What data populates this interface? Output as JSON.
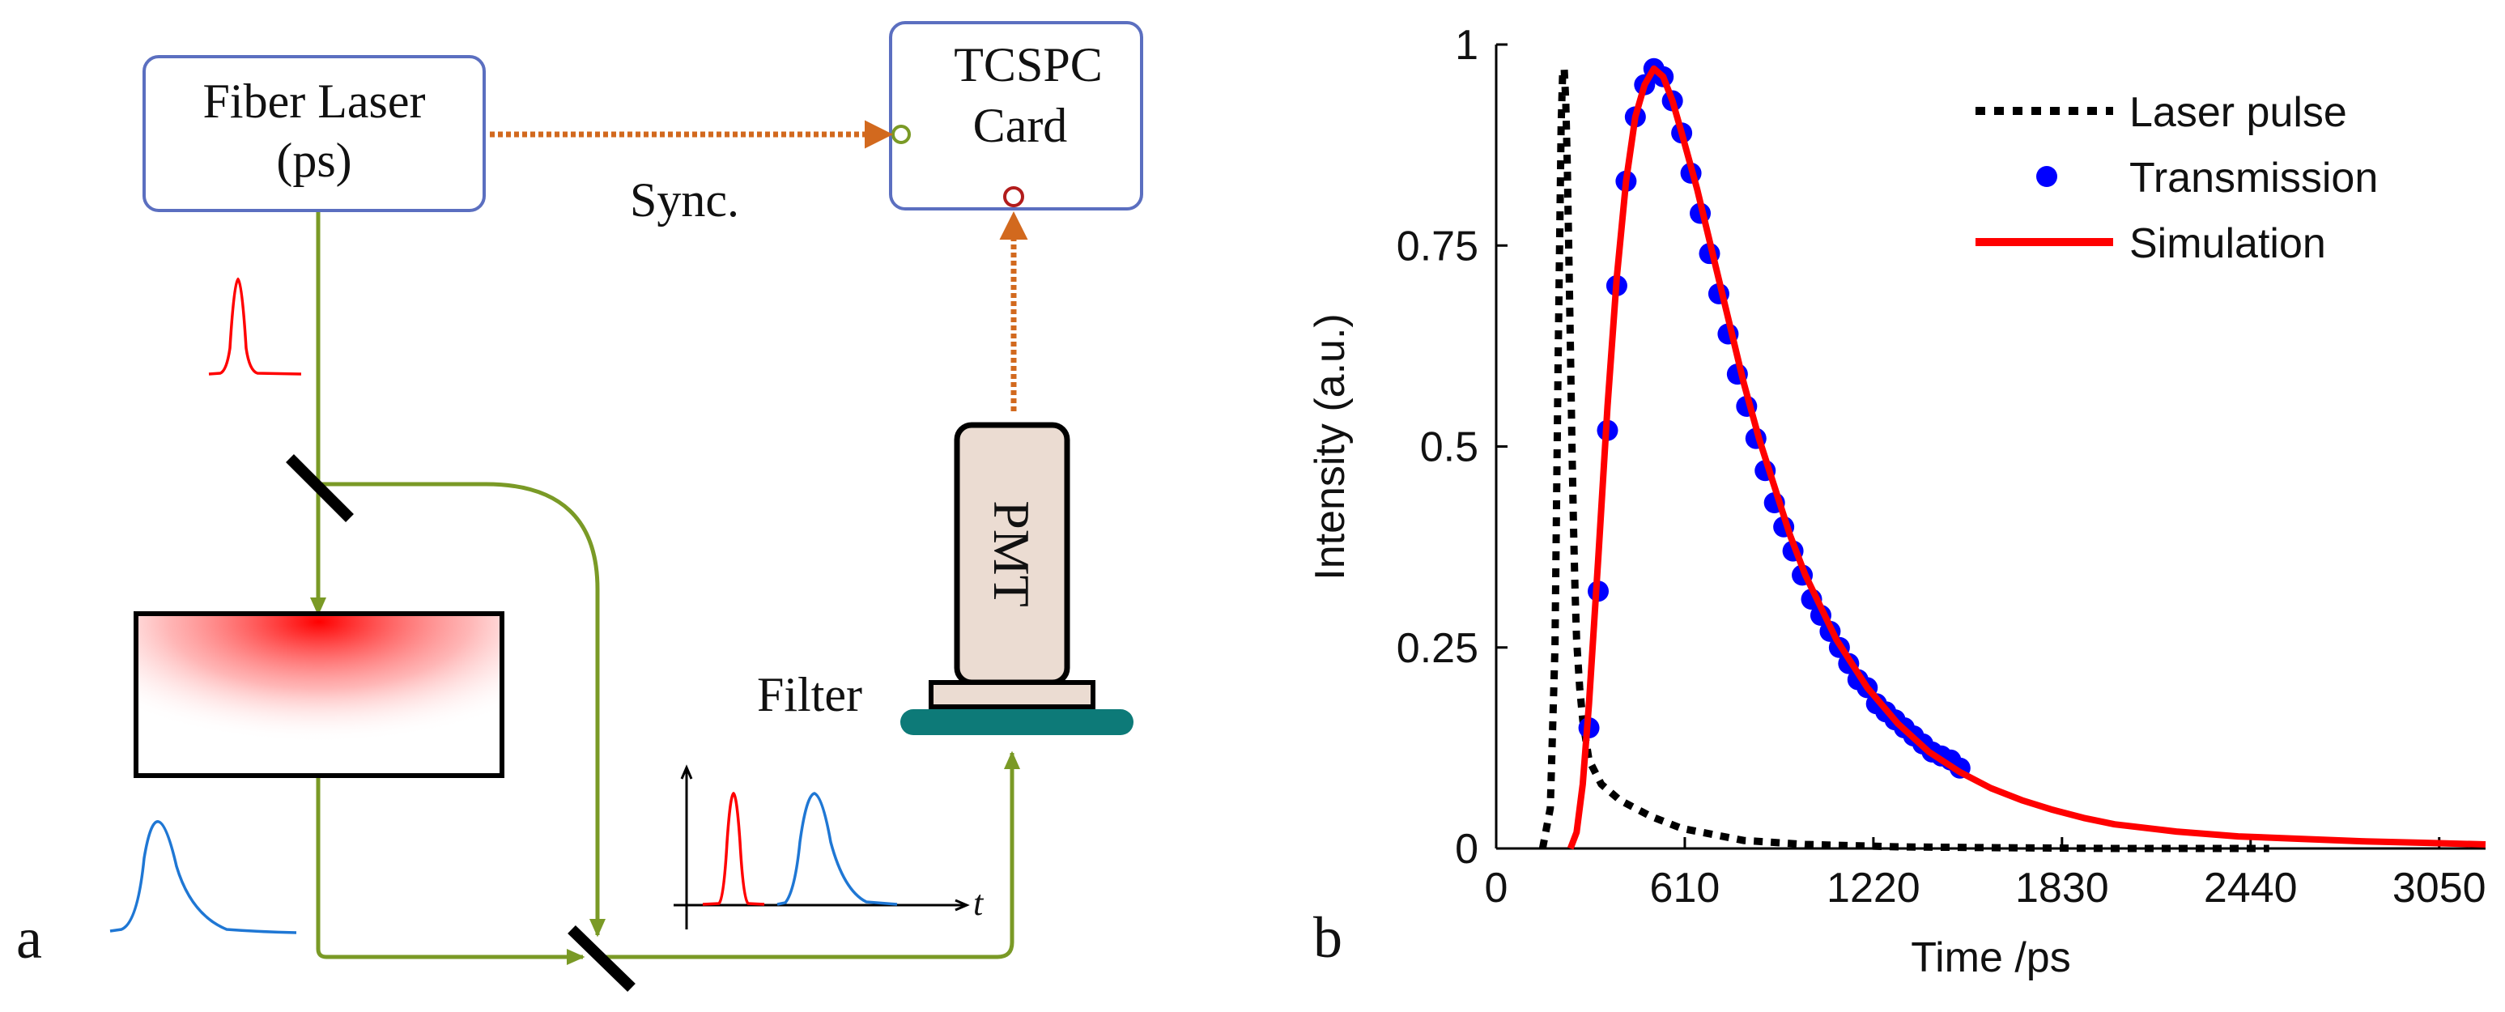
{
  "panel_a": {
    "label": "a",
    "laser_box": {
      "line1": "Fiber Laser",
      "line2": "(ps)"
    },
    "tcspc_box": {
      "line1": "TCSPC",
      "line2": "Card"
    },
    "sync_label": "Sync.",
    "pmt_label": "PMT",
    "filter_label": "Filter",
    "inset_axis_label": "t",
    "colors": {
      "fiber": "#7a9a26",
      "signal": "#d2691e",
      "box_border": "#5b6fc0",
      "pulse_red": "#ff0000",
      "pulse_blue": "#1f77d4",
      "filter": "#0d7a78",
      "pmt_fill": "#ebdcd2"
    }
  },
  "panel_b": {
    "label": "b",
    "chart_data": {
      "type": "line",
      "title": "",
      "xlabel": "Time /ps",
      "ylabel": "Intensity (a.u.)",
      "xlim": [
        0,
        3200
      ],
      "ylim": [
        0,
        1
      ],
      "xticks": [
        "0",
        "610",
        "1220",
        "1830",
        "2440",
        "3050"
      ],
      "yticks": [
        "0",
        "0.25",
        "0.5",
        "0.75",
        "1"
      ],
      "legend_position": "top-right",
      "series": [
        {
          "name": "Laser pulse",
          "style": "dotted",
          "color": "#000000",
          "x": [
            150,
            175,
            190,
            200,
            210,
            215,
            220,
            225,
            230,
            235,
            240,
            245,
            250,
            255,
            260,
            270,
            280,
            300,
            340,
            400,
            500,
            600,
            800,
            1000,
            1300,
            1600,
            2000,
            2500
          ],
          "y": [
            0.0,
            0.05,
            0.25,
            0.6,
            0.9,
            0.965,
            0.97,
            0.93,
            0.85,
            0.74,
            0.62,
            0.5,
            0.4,
            0.32,
            0.26,
            0.2,
            0.16,
            0.11,
            0.08,
            0.06,
            0.04,
            0.025,
            0.01,
            0.005,
            0.002,
            0.001,
            0.0,
            0.0
          ]
        },
        {
          "name": "Transmission",
          "style": "markers",
          "color": "#0000ff",
          "x": [
            300,
            330,
            360,
            390,
            420,
            450,
            480,
            510,
            540,
            570,
            600,
            630,
            660,
            690,
            720,
            750,
            780,
            810,
            840,
            870,
            900,
            930,
            960,
            990,
            1020,
            1050,
            1080,
            1110,
            1140,
            1170,
            1200,
            1230,
            1260,
            1290,
            1320,
            1350,
            1380,
            1410,
            1440,
            1470,
            1500
          ],
          "y": [
            0.15,
            0.32,
            0.52,
            0.7,
            0.83,
            0.91,
            0.95,
            0.97,
            0.96,
            0.93,
            0.89,
            0.84,
            0.79,
            0.74,
            0.69,
            0.64,
            0.59,
            0.55,
            0.51,
            0.47,
            0.43,
            0.4,
            0.37,
            0.34,
            0.31,
            0.29,
            0.27,
            0.25,
            0.23,
            0.21,
            0.2,
            0.18,
            0.17,
            0.16,
            0.15,
            0.14,
            0.13,
            0.12,
            0.115,
            0.11,
            0.1
          ]
        },
        {
          "name": "Simulation",
          "style": "solid",
          "color": "#ff0000",
          "x": [
            240,
            260,
            280,
            300,
            330,
            360,
            390,
            420,
            450,
            480,
            510,
            540,
            570,
            600,
            650,
            700,
            750,
            800,
            850,
            900,
            950,
            1000,
            1100,
            1200,
            1300,
            1400,
            1500,
            1600,
            1700,
            1800,
            1900,
            2000,
            2200,
            2400,
            2600,
            2800,
            3000,
            3200
          ],
          "y": [
            0.0,
            0.02,
            0.08,
            0.18,
            0.36,
            0.55,
            0.71,
            0.83,
            0.91,
            0.95,
            0.97,
            0.96,
            0.93,
            0.89,
            0.82,
            0.74,
            0.66,
            0.58,
            0.51,
            0.45,
            0.39,
            0.34,
            0.26,
            0.2,
            0.155,
            0.12,
            0.095,
            0.075,
            0.06,
            0.048,
            0.038,
            0.03,
            0.021,
            0.015,
            0.012,
            0.009,
            0.007,
            0.005
          ]
        }
      ]
    }
  }
}
